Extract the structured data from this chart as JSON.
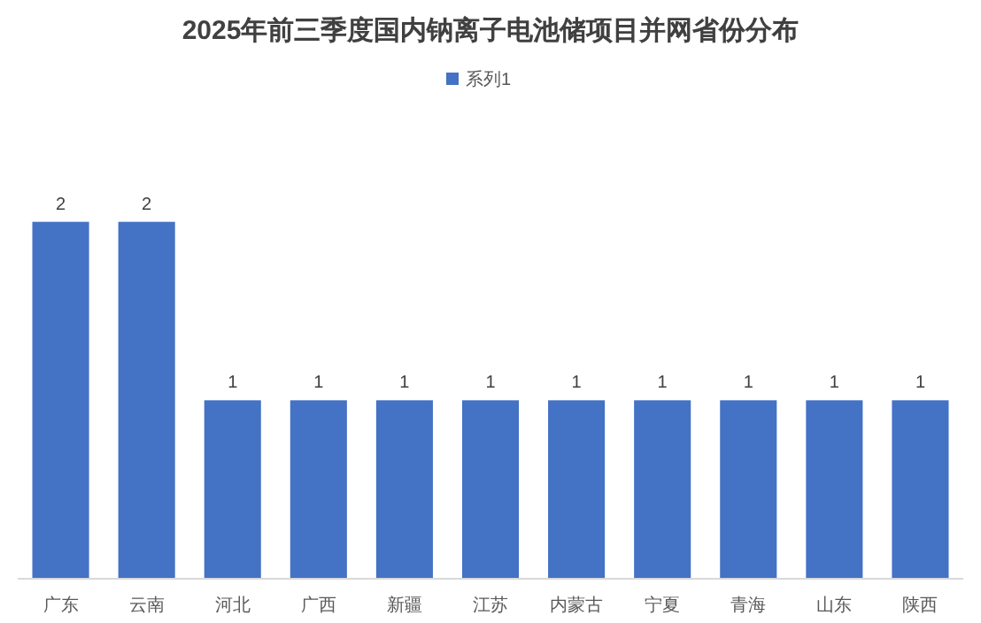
{
  "chart_data": {
    "type": "bar",
    "title": "2025年前三季度国内钠离子电池储项目并网省份分布",
    "categories": [
      "广东",
      "云南",
      "河北",
      "广西",
      "新疆",
      "江苏",
      "内蒙古",
      "宁夏",
      "青海",
      "山东",
      "陕西"
    ],
    "series": [
      {
        "name": "系列1",
        "color": "#4472c4",
        "values": [
          2,
          2,
          1,
          1,
          1,
          1,
          1,
          1,
          1,
          1,
          1
        ]
      }
    ],
    "data_labels": true,
    "legend": "top"
  }
}
